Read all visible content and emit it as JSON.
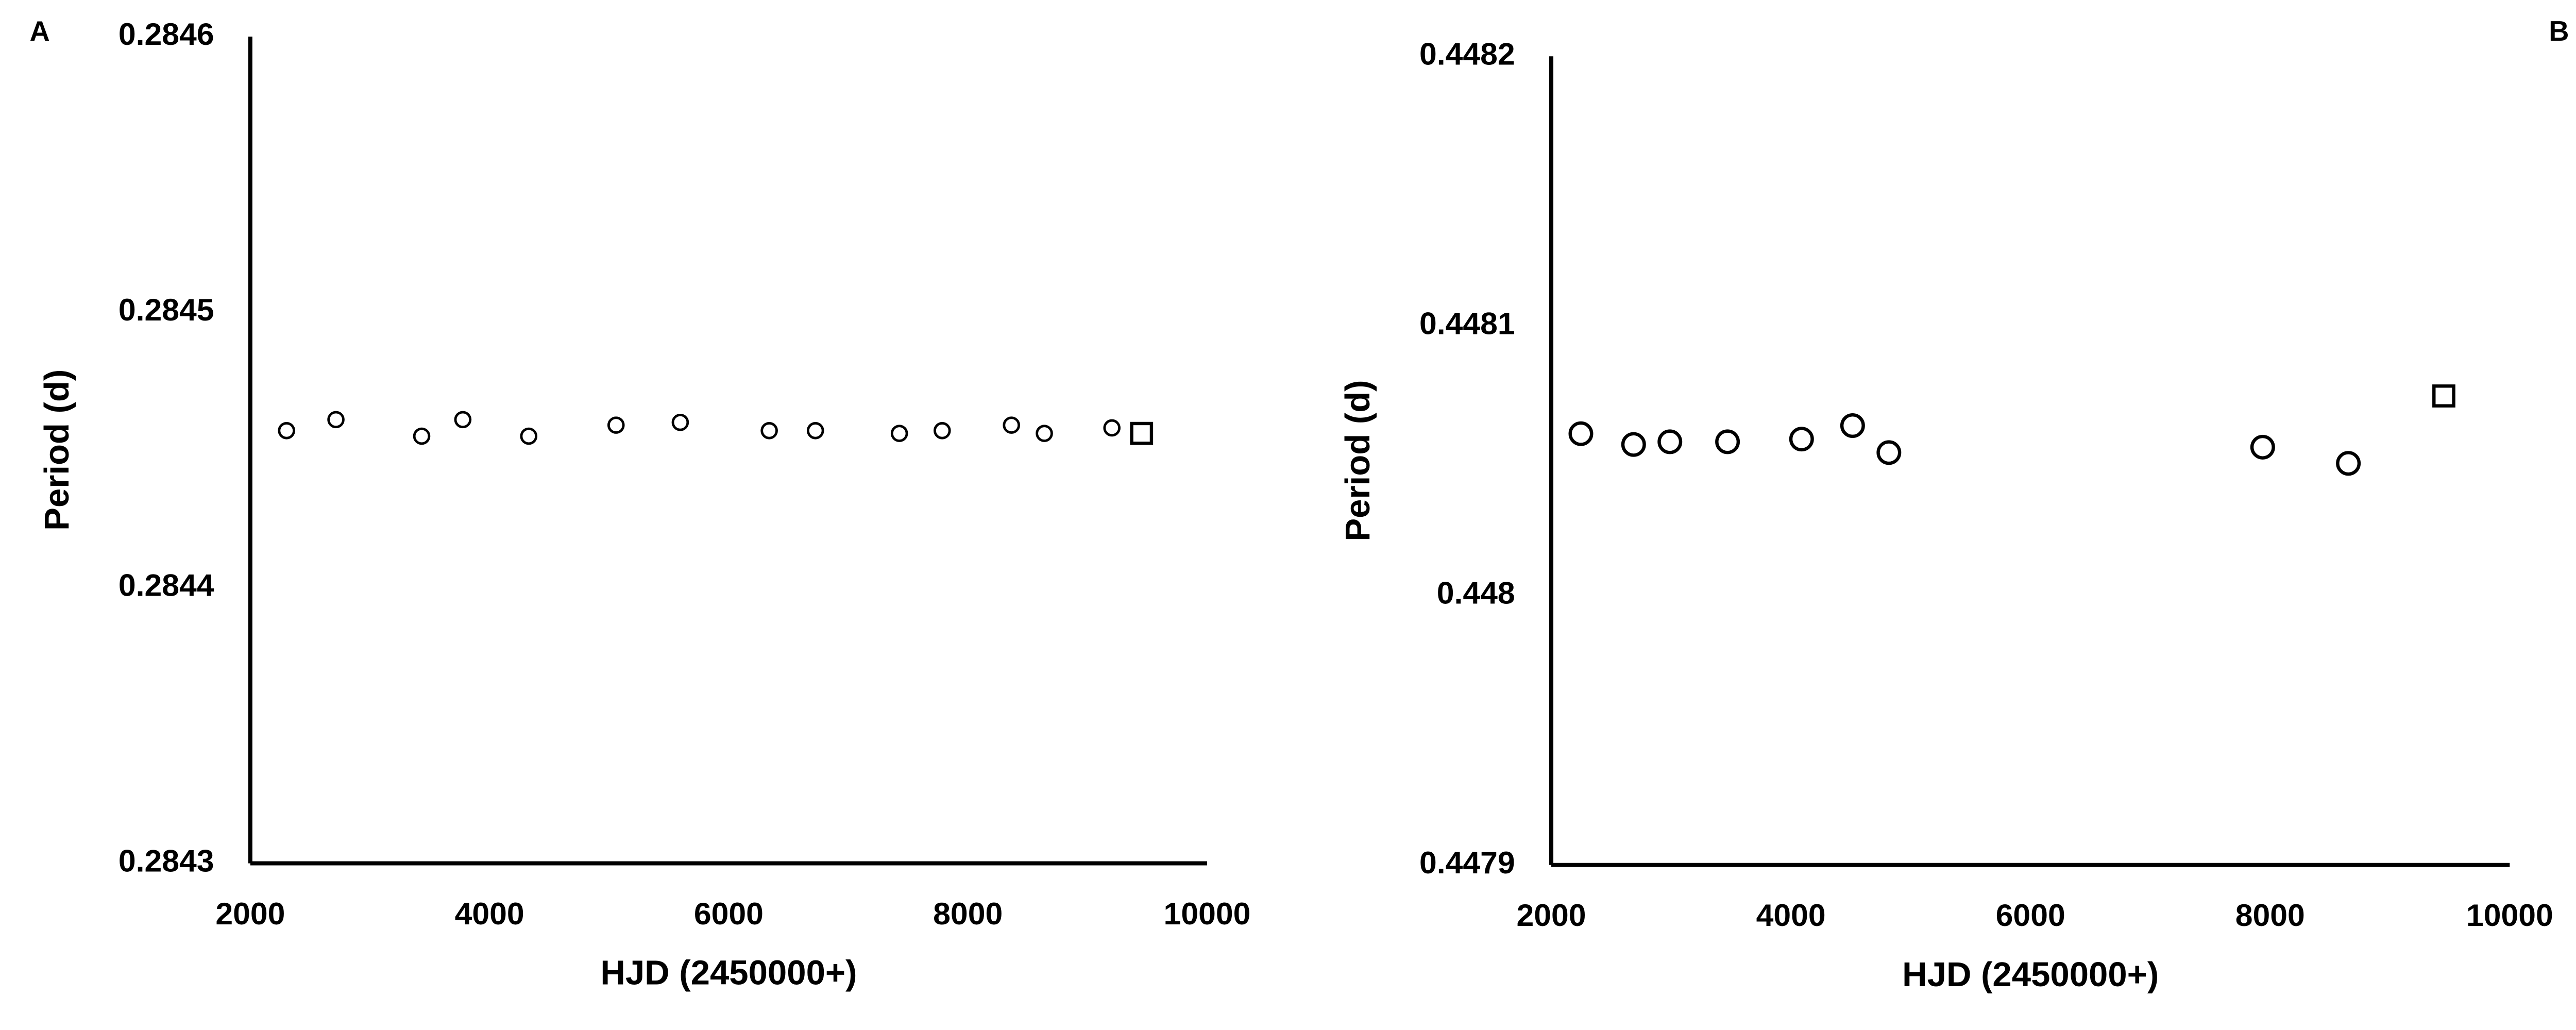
{
  "chart_data": [
    {
      "type": "scatter",
      "panel_label": "A",
      "x_label": "HJD (2450000+)",
      "y_label": "Period (d)",
      "xlim": [
        2000,
        10000
      ],
      "xticks": [
        2000,
        4000,
        6000,
        8000,
        10000
      ],
      "ylim": [
        0.2843,
        0.2846
      ],
      "yticks": [
        0.2843,
        0.2844,
        0.2845,
        0.2846
      ],
      "series": [
        {
          "marker": "circle",
          "color": "#000000",
          "x": [
            2303,
            2716,
            3433,
            3777,
            4328,
            5058,
            5595,
            6339,
            6725,
            7427,
            7785,
            8364,
            8639,
            9204
          ],
          "values": [
            0.284457,
            0.284461,
            0.284455,
            0.284461,
            0.284455,
            0.284459,
            0.28446,
            0.284457,
            0.284457,
            0.284456,
            0.284457,
            0.284459,
            0.284456,
            0.284458
          ]
        },
        {
          "marker": "square",
          "color": "#000000",
          "x": [
            9452
          ],
          "values": [
            0.284456
          ]
        }
      ]
    },
    {
      "type": "scatter",
      "panel_label": "B",
      "x_label": "HJD (2450000+)",
      "y_label": "Period (d)",
      "xlim": [
        2000,
        10000
      ],
      "xticks": [
        2000,
        4000,
        6000,
        8000,
        10000
      ],
      "ylim": [
        0.4479,
        0.4482
      ],
      "yticks": [
        0.4479,
        0.448,
        0.4481,
        0.4482
      ],
      "series": [
        {
          "marker": "circle",
          "color": "#000000",
          "x": [
            2247,
            2687,
            2990,
            3471,
            4089,
            4515,
            4818,
            7938,
            8653
          ],
          "values": [
            0.44806,
            0.448056,
            0.448057,
            0.448057,
            0.448058,
            0.448063,
            0.448053,
            0.448055,
            0.448049
          ]
        },
        {
          "marker": "square",
          "color": "#000000",
          "x": [
            9450
          ],
          "values": [
            0.448074
          ]
        }
      ]
    }
  ]
}
